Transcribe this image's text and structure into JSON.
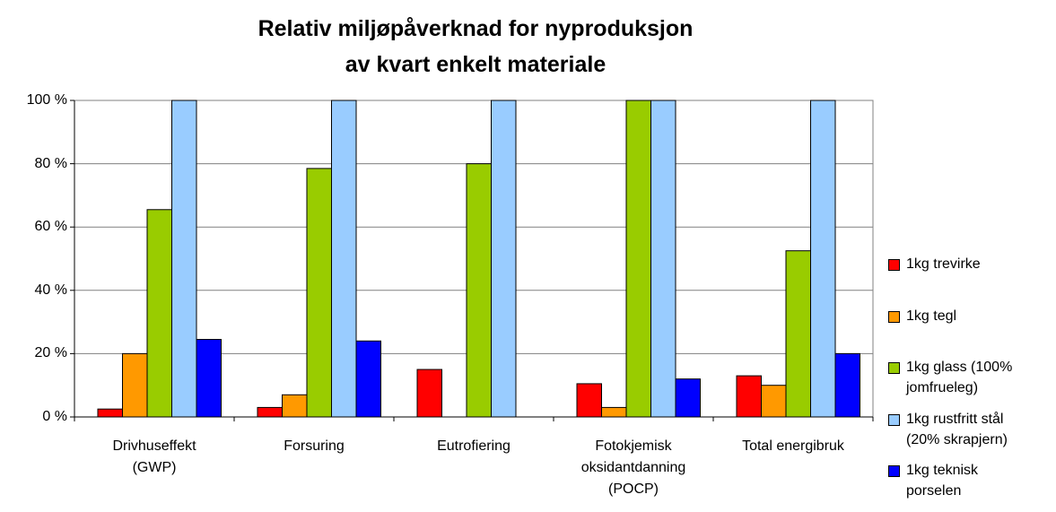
{
  "chart_data": {
    "type": "bar",
    "title": "Relativ miljøpåverknad for nyproduksjon\nav kvart enkelt materiale",
    "categories": [
      "Drivhuseffekt\n(GWP)",
      "Forsuring",
      "Eutrofiering",
      "Fotokjemisk\noksidantdanning\n(POCP)",
      "Total energibruk"
    ],
    "series": [
      {
        "name": "1kg trevirke",
        "color": "#ff0000",
        "values": [
          2.5,
          3,
          15,
          10.5,
          13
        ]
      },
      {
        "name": "1kg tegl",
        "color": "#ff9900",
        "values": [
          20,
          7,
          null,
          3,
          10
        ]
      },
      {
        "name": "1kg glass (100%\njomfrueleg)",
        "color": "#99cc00",
        "values": [
          65.5,
          78.5,
          80,
          100,
          52.5
        ]
      },
      {
        "name": "1kg rustfritt stål\n(20% skrapjern)",
        "color": "#99ccff",
        "values": [
          100,
          100,
          100,
          100,
          100
        ]
      },
      {
        "name": "1kg teknisk\nporselen",
        "color": "#0000ff",
        "values": [
          24.5,
          24,
          null,
          12,
          20
        ]
      }
    ],
    "ylim": [
      0,
      100
    ],
    "yticks": [
      {
        "value": 0,
        "label": "0 %"
      },
      {
        "value": 20,
        "label": "20 %"
      },
      {
        "value": 40,
        "label": "40 %"
      },
      {
        "value": 60,
        "label": "60 %"
      },
      {
        "value": 80,
        "label": "80 %"
      },
      {
        "value": 100,
        "label": "100 %"
      }
    ],
    "grid": true,
    "legend": "right"
  }
}
